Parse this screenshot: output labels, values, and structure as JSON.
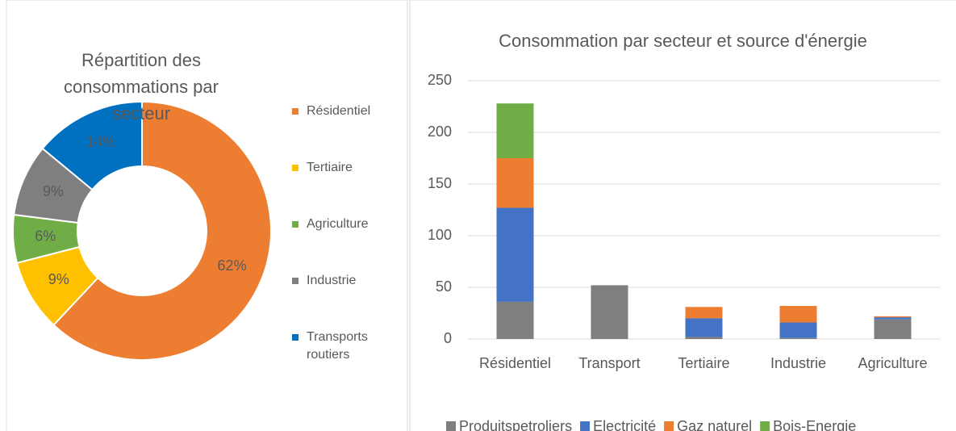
{
  "chart_data": [
    {
      "type": "pie",
      "title": "Répartition des consommations par secteur",
      "categories": [
        "Résidentiel",
        "Tertiaire",
        "Agriculture",
        "Industrie",
        "Transports routiers"
      ],
      "values": [
        62,
        9,
        6,
        9,
        14
      ],
      "value_labels": [
        "62%",
        "9%",
        "6%",
        "9%",
        "14%"
      ],
      "colors": [
        "#ed7d31",
        "#ffc000",
        "#70ad47",
        "#7f7f7f",
        "#0070c0"
      ],
      "legend": "right"
    },
    {
      "type": "bar",
      "title": "Consommation par secteur et source d'énergie",
      "categories": [
        "Résidentiel",
        "Transport",
        "Tertiaire",
        "Industrie",
        "Agriculture"
      ],
      "series": [
        {
          "name": "Produitspetroliers",
          "color": "#7f7f7f",
          "values": [
            36,
            52,
            2,
            1,
            19
          ]
        },
        {
          "name": "Electricité",
          "color": "#4472c4",
          "values": [
            91,
            0,
            18,
            15,
            2
          ]
        },
        {
          "name": "Gaz naturel",
          "color": "#ed7d31",
          "values": [
            48,
            0,
            11,
            16,
            1
          ]
        },
        {
          "name": "Bois-Energie",
          "color": "#70ad47",
          "values": [
            53,
            0,
            0,
            0,
            0
          ]
        }
      ],
      "stacked": true,
      "ylim": [
        0,
        250
      ],
      "yticks": [
        0,
        50,
        100,
        150,
        200,
        250
      ],
      "grid": true,
      "legend": "bottom"
    }
  ]
}
